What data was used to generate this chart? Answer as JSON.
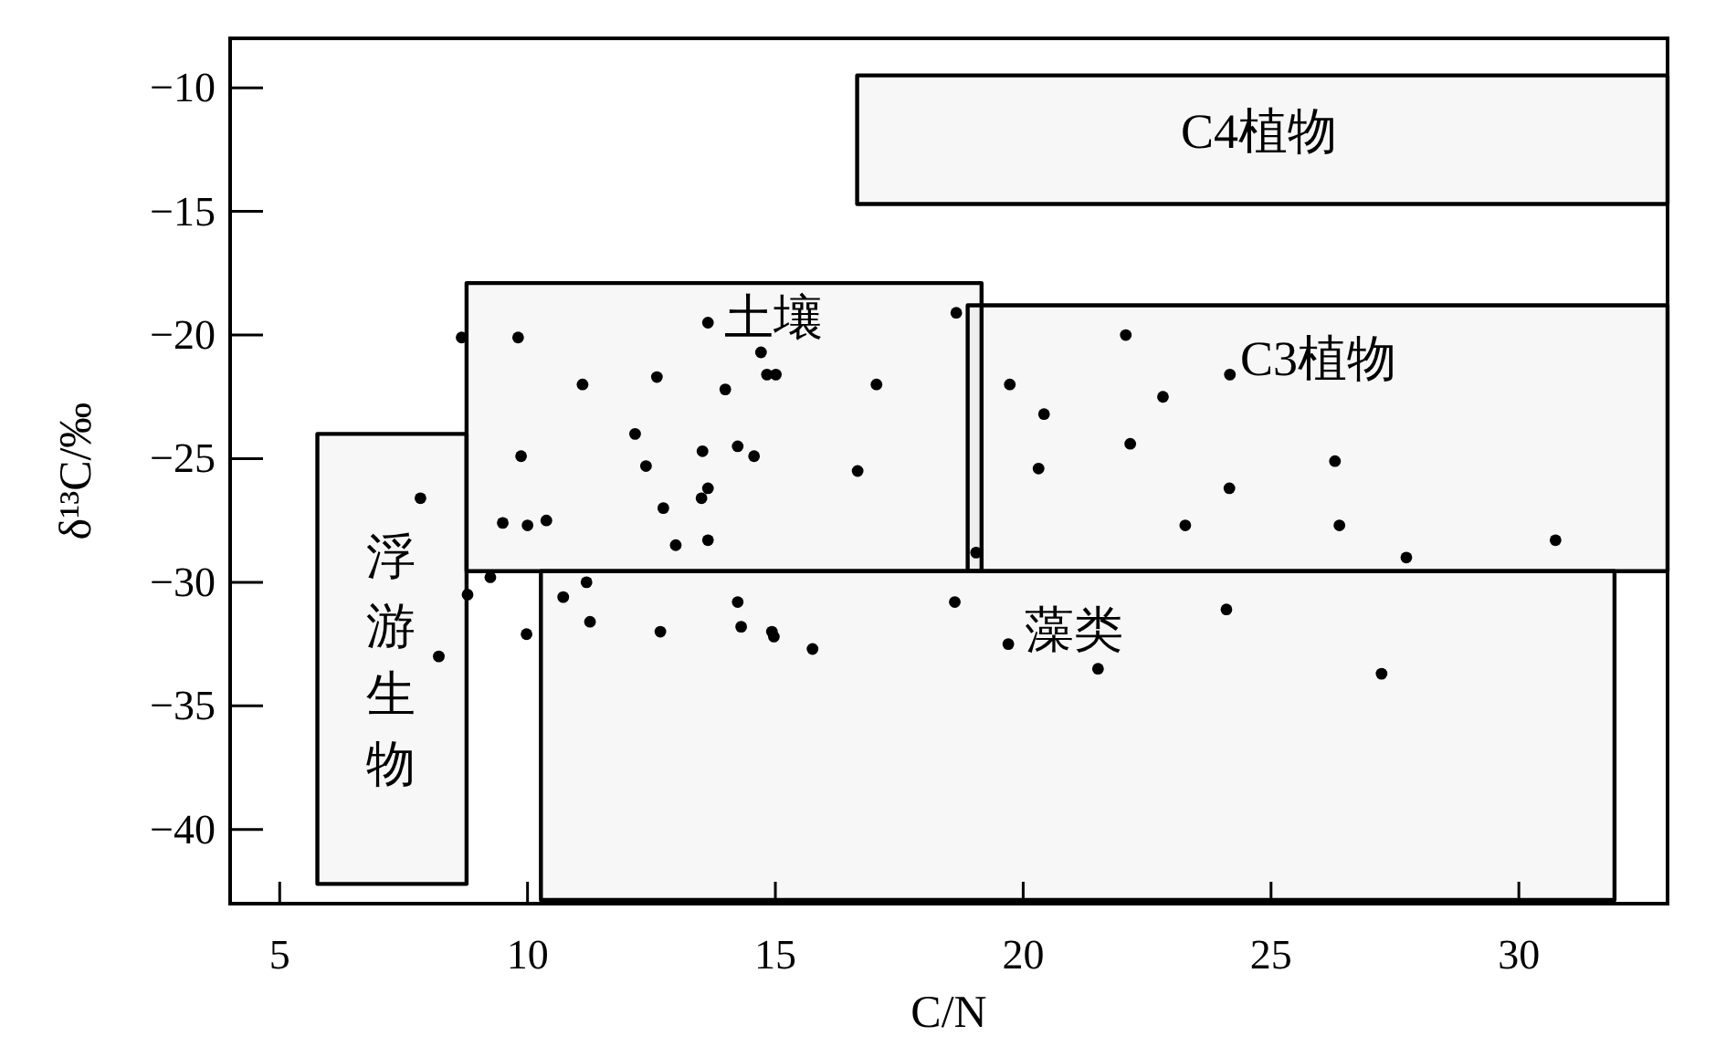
{
  "chart_data": {
    "type": "scatter",
    "xlabel": "C/N",
    "ylabel": "δ¹³C/‰",
    "xlim": [
      4,
      33
    ],
    "ylim": [
      -43,
      -8
    ],
    "xticks": [
      5,
      10,
      15,
      20,
      25,
      30
    ],
    "yticks": [
      -10,
      -15,
      -20,
      -25,
      -30,
      -35,
      -40
    ],
    "marker": "circle",
    "grid": false,
    "series": [
      {
        "color": "#000000",
        "x": [
          8.67,
          9.81,
          13.64,
          14.71,
          11.11,
          12.61,
          13.99,
          14.83,
          15.01,
          17.04,
          18.65,
          12.17,
          9.87,
          12.39,
          13.53,
          14.24,
          14.57,
          16.66,
          7.84,
          13.64,
          13.51,
          12.74,
          9.5,
          10.0,
          10.38,
          12.99,
          13.64,
          8.79,
          9.25,
          10.72,
          11.19,
          11.26,
          9.98,
          8.21,
          12.68,
          14.24,
          14.31,
          14.93,
          14.97,
          15.75,
          18.62,
          19.05,
          22.07,
          24.17,
          19.73,
          22.82,
          20.42,
          22.16,
          20.31,
          26.29,
          24.16,
          23.27,
          26.38,
          30.74,
          27.73,
          19.7,
          21.51,
          24.1,
          27.23
        ],
        "values": [
          -20.1,
          -20.1,
          -19.5,
          -20.7,
          -22.0,
          -21.7,
          -22.2,
          -21.6,
          -21.6,
          -22.0,
          -19.1,
          -24.0,
          -24.9,
          -25.3,
          -24.7,
          -24.5,
          -24.9,
          -25.5,
          -26.6,
          -26.2,
          -26.6,
          -27.0,
          -27.6,
          -27.7,
          -27.5,
          -28.5,
          -28.3,
          -30.5,
          -29.8,
          -30.6,
          -30.0,
          -31.6,
          -32.1,
          -33.0,
          -32.0,
          -30.8,
          -31.8,
          -32.0,
          -32.2,
          -32.7,
          -30.8,
          -28.8,
          -20.0,
          -21.6,
          -22.0,
          -22.5,
          -23.2,
          -24.4,
          -25.4,
          -25.1,
          -26.2,
          -27.7,
          -27.7,
          -28.3,
          -29.0,
          -32.5,
          -33.5,
          -31.1,
          -33.7
        ]
      },
      {
        "type": "line",
        "name": "C4植物",
        "color": "#000000",
        "x": [
          16.65,
          33
        ],
        "values": [
          null,
          null
        ],
        "lower": [
          -14.7,
          -14.7
        ],
        "upper": [
          -9.5,
          -9.5
        ]
      },
      {
        "type": "line",
        "name": "土壤",
        "color": "#000000",
        "x": [
          8.77,
          19.16
        ],
        "values": [
          null,
          null
        ],
        "lower": [
          -29.55,
          -29.55
        ],
        "upper": [
          -17.9,
          -17.9
        ]
      },
      {
        "type": "line",
        "name": "C3植物",
        "color": "#000000",
        "x": [
          18.88,
          33
        ],
        "values": [
          null,
          null
        ],
        "lower": [
          -29.55,
          -29.55
        ],
        "upper": [
          -18.8,
          -18.8
        ]
      },
      {
        "type": "line",
        "name": "浮游生物",
        "color": "#000000",
        "x": [
          5.76,
          8.77
        ],
        "values": [
          null,
          null
        ],
        "lower": [
          -42.2,
          -42.2
        ],
        "upper": [
          -24,
          -24
        ]
      },
      {
        "type": "line",
        "name": "藻类",
        "color": "#000000",
        "x": [
          10.27,
          31.93
        ],
        "values": [
          null,
          null
        ],
        "lower": [
          -42.85,
          -42.85
        ],
        "upper": [
          -29.55,
          -29.55
        ]
      }
    ]
  }
}
